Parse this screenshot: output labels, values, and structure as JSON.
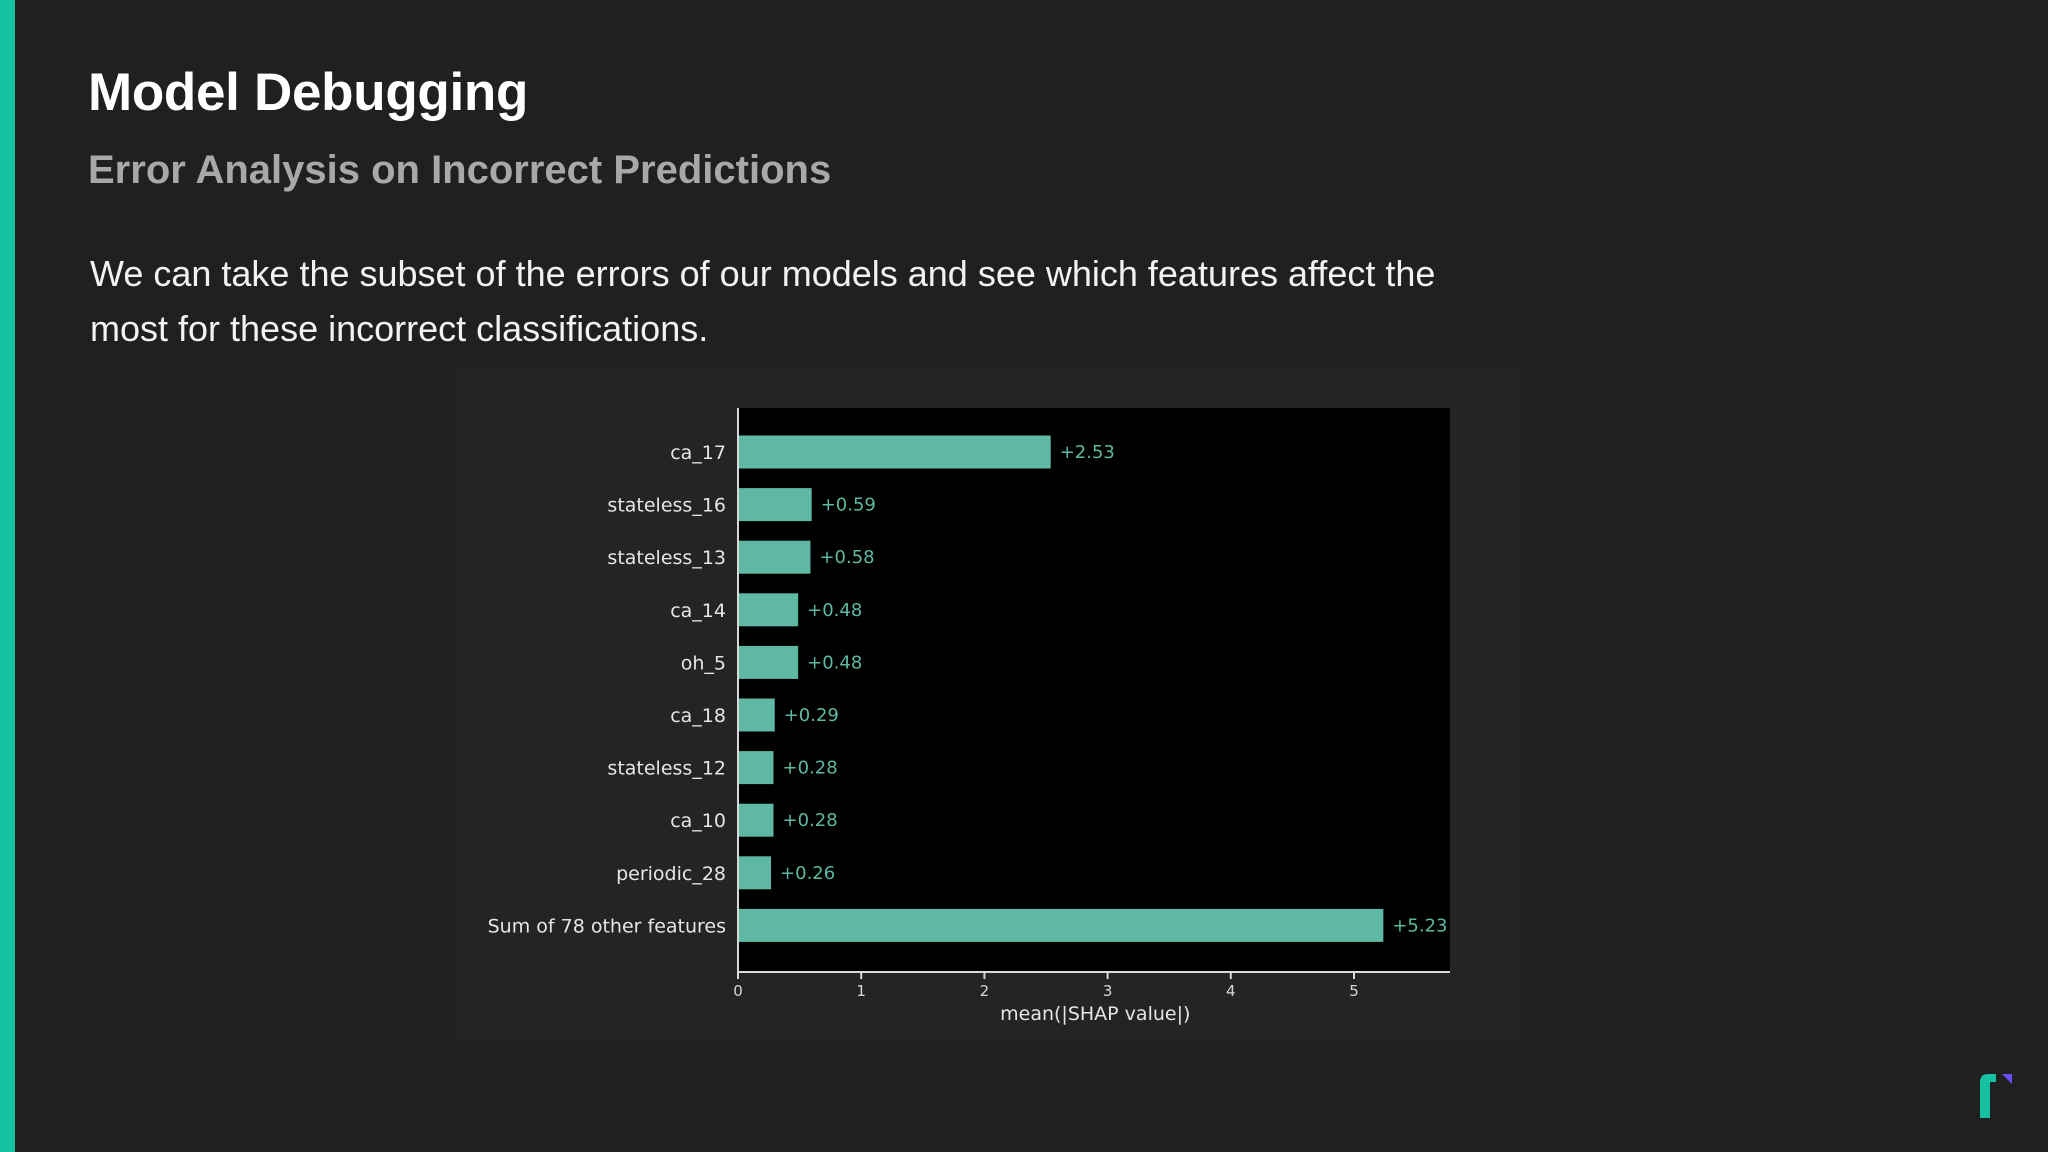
{
  "slide": {
    "title": "Model Debugging",
    "subtitle": "Error Analysis on Incorrect Predictions",
    "body": "We can take the subset of the errors of our models and see which features affect the most for these incorrect classifications."
  },
  "colors": {
    "background": "#1f201f",
    "accent": "#16c1a2",
    "bar": "#5fb8a3",
    "plot_background": "#000000",
    "logo_accent": "#6a4cff"
  },
  "icons": {
    "logo": "brand-logo-icon"
  },
  "chart_data": {
    "type": "bar",
    "orientation": "horizontal",
    "categories": [
      "ca_17",
      "stateless_16",
      "stateless_13",
      "ca_14",
      "oh_5",
      "ca_18",
      "stateless_12",
      "ca_10",
      "periodic_28",
      "Sum of 78 other features"
    ],
    "values": [
      2.53,
      0.59,
      0.58,
      0.48,
      0.48,
      0.29,
      0.28,
      0.28,
      0.26,
      5.23
    ],
    "data_labels": [
      "+2.53",
      "+0.59",
      "+0.58",
      "+0.48",
      "+0.48",
      "+0.29",
      "+0.28",
      "+0.28",
      "+0.26",
      "+5.23"
    ],
    "xlabel": "mean(|SHAP value|)",
    "ylabel": "",
    "xlim": [
      0,
      5.8
    ],
    "xticks": [
      0,
      1,
      2,
      3,
      4,
      5
    ],
    "grid": false,
    "legend": "none"
  }
}
